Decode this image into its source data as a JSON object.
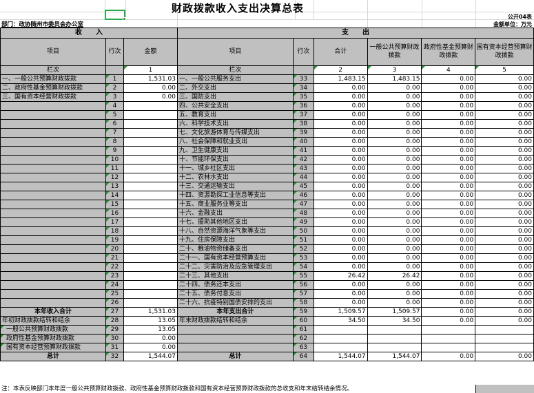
{
  "title": "财政拨款收入支出决算总表",
  "meta": {
    "sheet_label": "公开04表",
    "department": "部门：政协随州市委员会办公室",
    "unit": "金额单位：万元"
  },
  "colors": {
    "header_fill": "#c0c0c0",
    "selection_green": "#2ba84a",
    "triangle_green": "#2a9235",
    "border": "#000000"
  },
  "income": {
    "section_title": "收　　入",
    "headers": {
      "item": "项目",
      "row": "行次",
      "amount": "金额"
    },
    "lanci": {
      "label": "栏次",
      "cols": [
        "1"
      ]
    },
    "rows": [
      {
        "label": "一、一般公共预算财政拨款",
        "row": "1",
        "amount": "1,531.03"
      },
      {
        "label": "二、政府性基金预算财政拨款",
        "row": "2",
        "amount": "0.00"
      },
      {
        "label": "三、国有资本经营财政拨款",
        "row": "3",
        "amount": "0.00"
      },
      {
        "label": "",
        "row": "4",
        "amount": ""
      },
      {
        "label": "",
        "row": "5",
        "amount": ""
      },
      {
        "label": "",
        "row": "6",
        "amount": ""
      },
      {
        "label": "",
        "row": "7",
        "amount": ""
      },
      {
        "label": "",
        "row": "8",
        "amount": ""
      },
      {
        "label": "",
        "row": "9",
        "amount": ""
      },
      {
        "label": "",
        "row": "10",
        "amount": ""
      },
      {
        "label": "",
        "row": "11",
        "amount": ""
      },
      {
        "label": "",
        "row": "12",
        "amount": ""
      },
      {
        "label": "",
        "row": "13",
        "amount": ""
      },
      {
        "label": "",
        "row": "14",
        "amount": ""
      },
      {
        "label": "",
        "row": "15",
        "amount": ""
      },
      {
        "label": "",
        "row": "16",
        "amount": ""
      },
      {
        "label": "",
        "row": "17",
        "amount": ""
      },
      {
        "label": "",
        "row": "18",
        "amount": ""
      },
      {
        "label": "",
        "row": "19",
        "amount": ""
      },
      {
        "label": "",
        "row": "20",
        "amount": ""
      },
      {
        "label": "",
        "row": "21",
        "amount": ""
      },
      {
        "label": "",
        "row": "22",
        "amount": ""
      },
      {
        "label": "",
        "row": "23",
        "amount": ""
      },
      {
        "label": "",
        "row": "24",
        "amount": ""
      },
      {
        "label": "",
        "row": "25",
        "amount": ""
      },
      {
        "label": "",
        "row": "26",
        "amount": ""
      },
      {
        "label": "本年收入合计",
        "row": "27",
        "amount": "1,531.03",
        "bold": true
      },
      {
        "label": "年初财政拨款结转和结余",
        "row": "28",
        "amount": "13.05"
      },
      {
        "label": "一般公共预算财政拨款",
        "row": "29",
        "amount": "13.05",
        "indent": true,
        "tri": true
      },
      {
        "label": "政府性基金预算财政拨款",
        "row": "30",
        "amount": "0.00",
        "indent": true,
        "tri": true
      },
      {
        "label": "国有资本经营预算财政拨款",
        "row": "31",
        "amount": "0.00",
        "indent": true,
        "tri": true
      },
      {
        "label": "总计",
        "row": "32",
        "amount": "1,544.07",
        "bold": true
      }
    ]
  },
  "expenditure": {
    "section_title": "支　　出",
    "headers": {
      "item": "项目",
      "row": "行次",
      "total": "合计",
      "general": "一般公共预算财政拨款",
      "govfund": "政府性基金预算财政拨款",
      "statecap": "国有资本经营预算财政拨款"
    },
    "lanci": {
      "label": "栏次",
      "cols": [
        "2",
        "3",
        "4",
        "5"
      ]
    },
    "rows": [
      {
        "label": "一、一般公共服务支出",
        "row": "33",
        "values": [
          "1,483.15",
          "1,483.15",
          "0.00",
          "0.00"
        ]
      },
      {
        "label": "二、外交支出",
        "row": "34",
        "values": [
          "0.00",
          "0.00",
          "0.00",
          "0.00"
        ]
      },
      {
        "label": "三、国防支出",
        "row": "35",
        "values": [
          "0.00",
          "0.00",
          "0.00",
          "0.00"
        ]
      },
      {
        "label": "四、公共安全支出",
        "row": "36",
        "values": [
          "0.00",
          "0.00",
          "0.00",
          "0.00"
        ]
      },
      {
        "label": "五、教育支出",
        "row": "37",
        "values": [
          "0.00",
          "0.00",
          "0.00",
          "0.00"
        ]
      },
      {
        "label": "六、科学技术支出",
        "row": "38",
        "values": [
          "0.00",
          "0.00",
          "0.00",
          "0.00"
        ]
      },
      {
        "label": "七、文化旅游体育与传媒支出",
        "row": "39",
        "values": [
          "0.00",
          "0.00",
          "0.00",
          "0.00"
        ]
      },
      {
        "label": "八、社会保障和就业支出",
        "row": "40",
        "values": [
          "0.00",
          "0.00",
          "0.00",
          "0.00"
        ]
      },
      {
        "label": "九、卫生健康支出",
        "row": "41",
        "values": [
          "0.00",
          "0.00",
          "0.00",
          "0.00"
        ]
      },
      {
        "label": "十、节能环保支出",
        "row": "42",
        "values": [
          "0.00",
          "0.00",
          "0.00",
          "0.00"
        ]
      },
      {
        "label": "十一、城乡社区支出",
        "row": "43",
        "values": [
          "0.00",
          "0.00",
          "0.00",
          "0.00"
        ]
      },
      {
        "label": "十二、农林水支出",
        "row": "44",
        "values": [
          "0.00",
          "0.00",
          "0.00",
          "0.00"
        ]
      },
      {
        "label": "十三、交通运输支出",
        "row": "45",
        "values": [
          "0.00",
          "0.00",
          "0.00",
          "0.00"
        ]
      },
      {
        "label": "十四、资源勘探工业信息等支出",
        "row": "46",
        "values": [
          "0.00",
          "0.00",
          "0.00",
          "0.00"
        ]
      },
      {
        "label": "十五、商业服务业等支出",
        "row": "47",
        "values": [
          "0.00",
          "0.00",
          "0.00",
          "0.00"
        ]
      },
      {
        "label": "十六、金融支出",
        "row": "48",
        "values": [
          "0.00",
          "0.00",
          "0.00",
          "0.00"
        ]
      },
      {
        "label": "十七、援助其他地区支出",
        "row": "49",
        "values": [
          "0.00",
          "0.00",
          "0.00",
          "0.00"
        ]
      },
      {
        "label": "十八、自然资源海洋气象等支出",
        "row": "50",
        "values": [
          "0.00",
          "0.00",
          "0.00",
          "0.00"
        ]
      },
      {
        "label": "十九、住房保障支出",
        "row": "51",
        "values": [
          "0.00",
          "0.00",
          "0.00",
          "0.00"
        ]
      },
      {
        "label": "二十、粮油物资储备支出",
        "row": "52",
        "values": [
          "0.00",
          "0.00",
          "0.00",
          "0.00"
        ]
      },
      {
        "label": "二十一、国有资本经营预算支出",
        "row": "53",
        "values": [
          "0.00",
          "0.00",
          "0.00",
          "0.00"
        ]
      },
      {
        "label": "二十二、灾害防治及应急管理支出",
        "row": "54",
        "values": [
          "0.00",
          "0.00",
          "0.00",
          "0.00"
        ]
      },
      {
        "label": "二十三、其他支出",
        "row": "55",
        "values": [
          "26.42",
          "26.42",
          "0.00",
          "0.00"
        ]
      },
      {
        "label": "二十四、债务还本支出",
        "row": "56",
        "values": [
          "0.00",
          "0.00",
          "0.00",
          "0.00"
        ]
      },
      {
        "label": "二十五、债务付息支出",
        "row": "57",
        "values": [
          "0.00",
          "0.00",
          "0.00",
          "0.00"
        ]
      },
      {
        "label": "二十六、抗疫特别国债安排的支出",
        "row": "58",
        "values": [
          "0.00",
          "0.00",
          "0.00",
          "0.00"
        ]
      },
      {
        "label": "本年支出合计",
        "row": "59",
        "values": [
          "1,509.57",
          "1,509.57",
          "0.00",
          "0.00"
        ],
        "bold": true
      },
      {
        "label": "年末财政拨款结转和结余",
        "row": "60",
        "values": [
          "34.50",
          "34.50",
          "0.00",
          "0.00"
        ]
      },
      {
        "label": "",
        "row": "61",
        "values": [
          "",
          "",
          "",
          ""
        ]
      },
      {
        "label": "",
        "row": "62",
        "values": [
          "",
          "",
          "",
          ""
        ]
      },
      {
        "label": "",
        "row": "63",
        "values": [
          "",
          "",
          "",
          ""
        ]
      },
      {
        "label": "总计",
        "row": "64",
        "values": [
          "1,544.07",
          "1,544.07",
          "0.00",
          "0.00"
        ],
        "bold": true
      }
    ]
  },
  "note": "注：本表反映部门本年度一般公共预算财政拨款、政府性基金预算财政拨款和国有资本经营预算财政拨款的总收支和年末结转结余情况。"
}
